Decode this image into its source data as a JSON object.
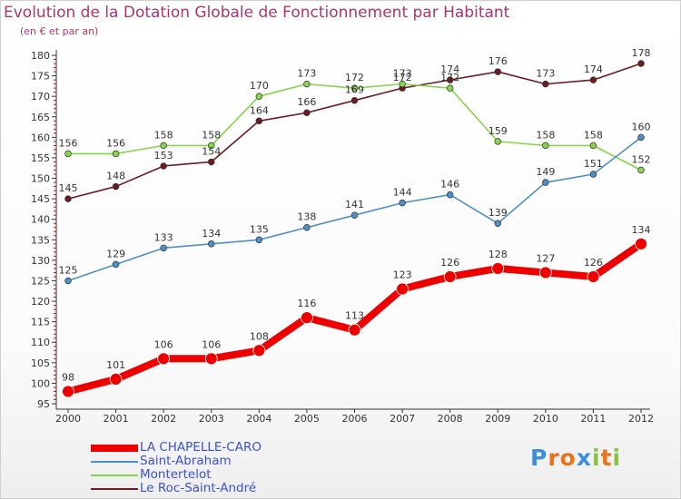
{
  "title": "Evolution de la Dotation Globale de Fonctionnement par Habitant",
  "subtitle": "(en € et par an)",
  "colors": {
    "title": "#b0346c",
    "axis": "#333333",
    "tick_red": "#e00000",
    "legend_text": "#3d52c9"
  },
  "chart_data": {
    "type": "line",
    "title": "Evolution de la Dotation Globale de Fonctionnement par Habitant",
    "subtitle": "(en € et par an)",
    "xlabel": "",
    "ylabel": "",
    "x": [
      2000,
      2001,
      2002,
      2003,
      2004,
      2005,
      2006,
      2007,
      2008,
      2009,
      2010,
      2011,
      2012
    ],
    "ylim": [
      95,
      180
    ],
    "yticks": [
      95,
      100,
      105,
      110,
      115,
      120,
      125,
      130,
      135,
      140,
      145,
      150,
      155,
      160,
      165,
      170,
      175,
      180
    ],
    "grid": false,
    "legend_position": "bottom-left",
    "series": [
      {
        "name": "LA CHAPELLE-CARO",
        "color": "#ee0000",
        "values": [
          98,
          101,
          106,
          106,
          108,
          116,
          113,
          123,
          126,
          128,
          127,
          126,
          134
        ]
      },
      {
        "name": "Saint-Abraham",
        "color": "#4f8fc7",
        "values": [
          125,
          129,
          133,
          134,
          135,
          138,
          141,
          144,
          146,
          139,
          149,
          151,
          160
        ]
      },
      {
        "name": "Montertelot",
        "color": "#86d34c",
        "values": [
          156,
          156,
          158,
          158,
          170,
          173,
          172,
          173,
          172,
          159,
          158,
          158,
          152
        ]
      },
      {
        "name": "Le Roc-Saint-André",
        "color": "#6b1c22",
        "values": [
          145,
          148,
          153,
          154,
          164,
          166,
          169,
          172,
          174,
          176,
          173,
          174,
          178
        ]
      }
    ]
  },
  "logo": {
    "letters": [
      "P",
      "r",
      "o",
      "x",
      "i",
      "t",
      "i"
    ],
    "colors": [
      "#3a8fd8",
      "#e8731a",
      "#e8731a",
      "#3a8fd8",
      "#86c440",
      "#e8731a",
      "#86c440"
    ]
  }
}
